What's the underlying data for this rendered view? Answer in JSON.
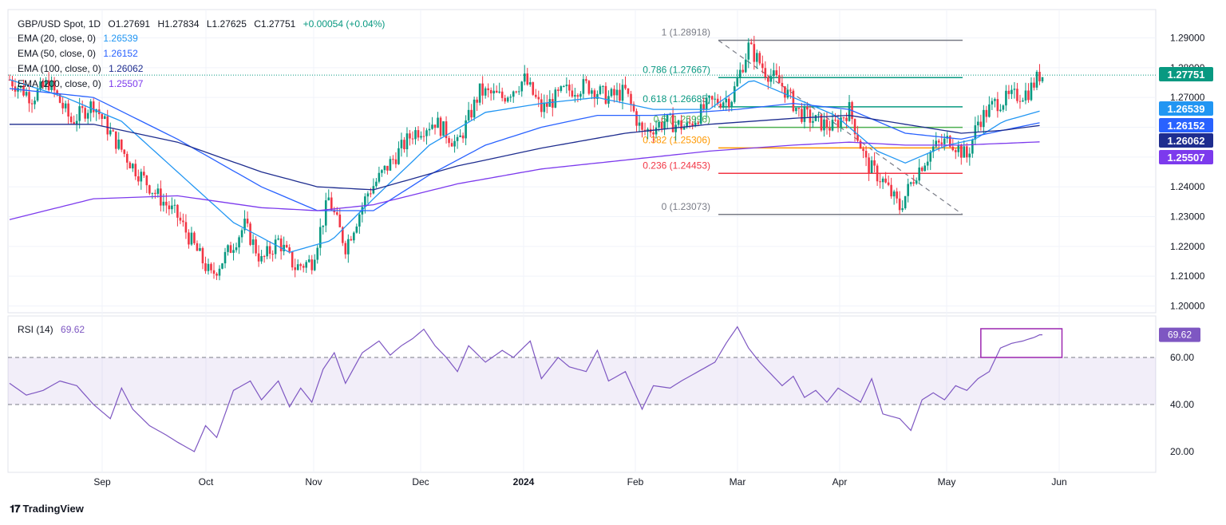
{
  "header": {
    "symbol": "GBP/USD Spot, 1D",
    "open": "O1.27691",
    "high": "H1.27834",
    "low": "L1.27625",
    "close": "C1.27751",
    "change": "+0.00054 (+0.04%)"
  },
  "legend": [
    {
      "label": "EMA (20, close, 0)",
      "value": "1.26539",
      "color": "#2196f3"
    },
    {
      "label": "EMA (50, close, 0)",
      "value": "1.26152",
      "color": "#2962ff"
    },
    {
      "label": "EMA (100, close, 0)",
      "value": "1.26062",
      "color": "#1e2d8f"
    },
    {
      "label": "EMA (200, close, 0)",
      "value": "1.25507",
      "color": "#7c3aed"
    }
  ],
  "rsi_legend": {
    "label": "RSI (14)",
    "value": "69.62",
    "color": "#7e57c2"
  },
  "brand": "TradingView",
  "colors": {
    "up": "#089981",
    "down": "#f23645",
    "grid": "#e0e3eb",
    "rsi": "#7e57c2"
  },
  "chart_data": {
    "type": "candlestick",
    "symbol": "GBP/USD",
    "timeframe": "1D",
    "x_labels": [
      "Sep",
      "Oct",
      "Nov",
      "Dec",
      "2024",
      "Feb",
      "Mar",
      "Apr",
      "May",
      "Jun"
    ],
    "y_ticks": [
      "1.29000",
      "1.28000",
      "1.27000",
      "1.26000",
      "1.25000",
      "1.24000",
      "1.23000",
      "1.22000",
      "1.21000",
      "1.20000"
    ],
    "ylim": [
      1.195,
      1.293
    ],
    "price_path": [
      [
        0,
        1.276
      ],
      [
        8,
        1.27
      ],
      [
        14,
        1.275
      ],
      [
        22,
        1.262
      ],
      [
        30,
        1.268
      ],
      [
        36,
        1.258
      ],
      [
        44,
        1.247
      ],
      [
        52,
        1.238
      ],
      [
        60,
        1.23
      ],
      [
        66,
        1.22
      ],
      [
        72,
        1.21
      ],
      [
        78,
        1.218
      ],
      [
        84,
        1.227
      ],
      [
        90,
        1.215
      ],
      [
        96,
        1.222
      ],
      [
        102,
        1.213
      ],
      [
        108,
        1.215
      ],
      [
        114,
        1.236
      ],
      [
        120,
        1.22
      ],
      [
        128,
        1.238
      ],
      [
        136,
        1.248
      ],
      [
        144,
        1.258
      ],
      [
        152,
        1.262
      ],
      [
        160,
        1.254
      ],
      [
        168,
        1.272
      ],
      [
        176,
        1.27
      ],
      [
        184,
        1.276
      ],
      [
        190,
        1.266
      ],
      [
        198,
        1.272
      ],
      [
        206,
        1.274
      ],
      [
        214,
        1.27
      ],
      [
        220,
        1.272
      ],
      [
        226,
        1.258
      ],
      [
        234,
        1.262
      ],
      [
        242,
        1.26
      ],
      [
        250,
        1.268
      ],
      [
        258,
        1.27
      ],
      [
        264,
        1.287
      ],
      [
        270,
        1.279
      ],
      [
        276,
        1.274
      ],
      [
        282,
        1.265
      ],
      [
        288,
        1.262
      ],
      [
        294,
        1.26
      ],
      [
        300,
        1.266
      ],
      [
        306,
        1.248
      ],
      [
        312,
        1.242
      ],
      [
        318,
        1.233
      ],
      [
        324,
        1.245
      ],
      [
        330,
        1.253
      ],
      [
        336,
        1.256
      ],
      [
        342,
        1.25
      ],
      [
        346,
        1.262
      ],
      [
        352,
        1.268
      ],
      [
        358,
        1.27
      ],
      [
        364,
        1.272
      ],
      [
        368,
        1.2775
      ]
    ],
    "emas": [
      {
        "name": "EMA (20, close, 0)",
        "value": 1.26539,
        "color": "#2196f3",
        "path": [
          [
            0,
            1.276
          ],
          [
            20,
            1.27
          ],
          [
            40,
            1.262
          ],
          [
            60,
            1.245
          ],
          [
            80,
            1.228
          ],
          [
            100,
            1.218
          ],
          [
            115,
            1.222
          ],
          [
            130,
            1.236
          ],
          [
            150,
            1.254
          ],
          [
            170,
            1.265
          ],
          [
            190,
            1.268
          ],
          [
            210,
            1.27
          ],
          [
            230,
            1.266
          ],
          [
            250,
            1.266
          ],
          [
            265,
            1.276
          ],
          [
            280,
            1.27
          ],
          [
            295,
            1.264
          ],
          [
            310,
            1.252
          ],
          [
            320,
            1.248
          ],
          [
            335,
            1.254
          ],
          [
            345,
            1.256
          ],
          [
            355,
            1.262
          ],
          [
            368,
            1.2654
          ]
        ]
      },
      {
        "name": "EMA (50, close, 0)",
        "value": 1.26152,
        "color": "#2962ff",
        "path": [
          [
            0,
            1.273
          ],
          [
            30,
            1.27
          ],
          [
            60,
            1.256
          ],
          [
            90,
            1.24
          ],
          [
            110,
            1.232
          ],
          [
            130,
            1.232
          ],
          [
            150,
            1.244
          ],
          [
            170,
            1.254
          ],
          [
            190,
            1.26
          ],
          [
            210,
            1.264
          ],
          [
            230,
            1.264
          ],
          [
            260,
            1.266
          ],
          [
            280,
            1.268
          ],
          [
            300,
            1.266
          ],
          [
            320,
            1.258
          ],
          [
            340,
            1.256
          ],
          [
            355,
            1.259
          ],
          [
            368,
            1.2615
          ]
        ]
      },
      {
        "name": "EMA (100, close, 0)",
        "value": 1.26062,
        "color": "#1e2d8f",
        "path": [
          [
            0,
            1.261
          ],
          [
            30,
            1.261
          ],
          [
            60,
            1.255
          ],
          [
            90,
            1.245
          ],
          [
            110,
            1.24
          ],
          [
            130,
            1.239
          ],
          [
            160,
            1.247
          ],
          [
            190,
            1.253
          ],
          [
            220,
            1.258
          ],
          [
            250,
            1.261
          ],
          [
            280,
            1.263
          ],
          [
            300,
            1.264
          ],
          [
            320,
            1.261
          ],
          [
            340,
            1.258
          ],
          [
            355,
            1.259
          ],
          [
            368,
            1.2606
          ]
        ]
      },
      {
        "name": "EMA (200, close, 0)",
        "value": 1.25507,
        "color": "#7c3aed",
        "path": [
          [
            0,
            1.229
          ],
          [
            30,
            1.236
          ],
          [
            60,
            1.237
          ],
          [
            90,
            1.233
          ],
          [
            110,
            1.232
          ],
          [
            130,
            1.234
          ],
          [
            160,
            1.241
          ],
          [
            190,
            1.246
          ],
          [
            220,
            1.249
          ],
          [
            250,
            1.252
          ],
          [
            280,
            1.254
          ],
          [
            300,
            1.255
          ],
          [
            320,
            1.254
          ],
          [
            340,
            1.254
          ],
          [
            368,
            1.2551
          ]
        ]
      }
    ],
    "fibonacci": [
      {
        "level": "1",
        "price": 1.28918,
        "label": "1 (1.28918)",
        "color": "#787b86"
      },
      {
        "level": "0.786",
        "price": 1.27667,
        "label": "0.786 (1.27667)",
        "color": "#089981"
      },
      {
        "level": "0.618",
        "price": 1.26685,
        "label": "0.618 (1.26685)",
        "color": "#089981"
      },
      {
        "level": "0.5",
        "price": 1.25996,
        "label": "0.5 (1.25996)",
        "color": "#4caf50"
      },
      {
        "level": "0.382",
        "price": 1.25306,
        "label": "0.382 (1.25306)",
        "color": "#ff9800"
      },
      {
        "level": "0.236",
        "price": 1.24453,
        "label": "0.236 (1.24453)",
        "color": "#f23645"
      },
      {
        "level": "0",
        "price": 1.23073,
        "label": "0 (1.23073)",
        "color": "#787b86"
      }
    ],
    "price_labels": [
      {
        "text": "1.27751",
        "price": 1.27751,
        "color": "#089981"
      },
      {
        "text": "1.26539",
        "price": 1.26539,
        "color": "#2196f3"
      },
      {
        "text": "1.26152",
        "price": 1.26152,
        "color": "#2962ff"
      },
      {
        "text": "1.26062",
        "price": 1.26062,
        "color": "#1e2d8f"
      },
      {
        "text": "1.25507",
        "price": 1.25507,
        "color": "#7c3aed"
      }
    ],
    "rsi": {
      "name": "RSI (14)",
      "value": 69.62,
      "y_ticks": [
        "60.00",
        "40.00",
        "20.00"
      ],
      "ylim": [
        12,
        78
      ],
      "band": [
        40,
        60
      ],
      "series": [
        [
          0,
          49
        ],
        [
          6,
          44
        ],
        [
          12,
          46
        ],
        [
          18,
          50
        ],
        [
          24,
          48
        ],
        [
          30,
          40
        ],
        [
          36,
          34
        ],
        [
          40,
          47
        ],
        [
          44,
          38
        ],
        [
          50,
          31
        ],
        [
          56,
          27
        ],
        [
          60,
          24
        ],
        [
          66,
          20
        ],
        [
          70,
          31
        ],
        [
          74,
          26
        ],
        [
          80,
          46
        ],
        [
          86,
          50
        ],
        [
          90,
          42
        ],
        [
          96,
          50
        ],
        [
          100,
          39
        ],
        [
          104,
          47
        ],
        [
          108,
          41
        ],
        [
          112,
          55
        ],
        [
          116,
          62
        ],
        [
          120,
          49
        ],
        [
          126,
          62
        ],
        [
          132,
          67
        ],
        [
          136,
          61
        ],
        [
          140,
          65
        ],
        [
          144,
          68
        ],
        [
          148,
          72
        ],
        [
          152,
          65
        ],
        [
          156,
          60
        ],
        [
          160,
          54
        ],
        [
          164,
          65
        ],
        [
          170,
          58
        ],
        [
          176,
          63
        ],
        [
          180,
          60
        ],
        [
          186,
          67
        ],
        [
          190,
          51
        ],
        [
          196,
          60
        ],
        [
          200,
          56
        ],
        [
          206,
          54
        ],
        [
          210,
          63
        ],
        [
          214,
          50
        ],
        [
          220,
          54
        ],
        [
          226,
          38
        ],
        [
          230,
          48
        ],
        [
          236,
          47
        ],
        [
          240,
          50
        ],
        [
          246,
          54
        ],
        [
          252,
          58
        ],
        [
          256,
          66
        ],
        [
          260,
          73
        ],
        [
          264,
          64
        ],
        [
          268,
          58
        ],
        [
          272,
          53
        ],
        [
          276,
          48
        ],
        [
          280,
          52
        ],
        [
          284,
          43
        ],
        [
          288,
          46
        ],
        [
          292,
          41
        ],
        [
          296,
          47
        ],
        [
          300,
          44
        ],
        [
          304,
          41
        ],
        [
          308,
          51
        ],
        [
          312,
          36
        ],
        [
          318,
          34
        ],
        [
          322,
          29
        ],
        [
          326,
          42
        ],
        [
          330,
          45
        ],
        [
          334,
          42
        ],
        [
          338,
          48
        ],
        [
          342,
          46
        ],
        [
          346,
          51
        ],
        [
          350,
          54
        ],
        [
          354,
          64
        ],
        [
          358,
          66
        ],
        [
          362,
          67
        ],
        [
          366,
          68.5
        ],
        [
          368,
          69.62
        ]
      ]
    },
    "annotation": {
      "type": "rectangle",
      "on": "rsi",
      "x_range": [
        347,
        368
      ]
    }
  }
}
